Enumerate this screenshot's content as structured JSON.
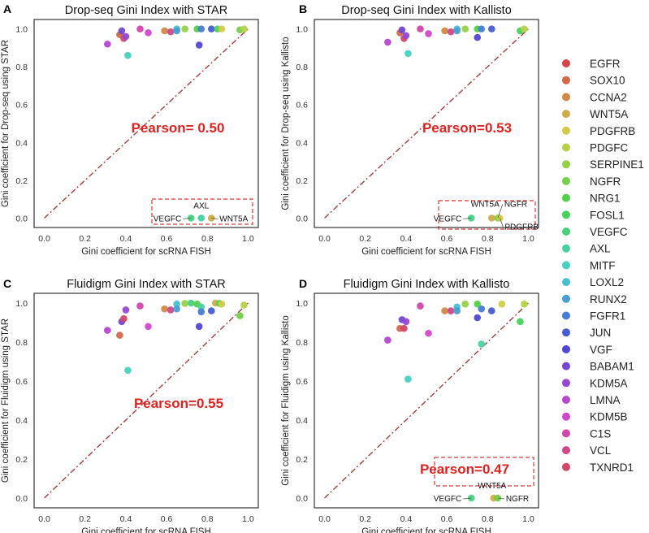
{
  "legend": {
    "items": [
      {
        "label": "EGFR",
        "color": "#d14747"
      },
      {
        "label": "SOX10",
        "color": "#d16947"
      },
      {
        "label": "CCNA2",
        "color": "#d18947"
      },
      {
        "label": "WNT5A",
        "color": "#d1ab47"
      },
      {
        "label": "PDGFRB",
        "color": "#d1cc47"
      },
      {
        "label": "PDGFC",
        "color": "#b6d147"
      },
      {
        "label": "SERPINE1",
        "color": "#94d147"
      },
      {
        "label": "NGFR",
        "color": "#73d147"
      },
      {
        "label": "NRG1",
        "color": "#52d147"
      },
      {
        "label": "FOSL1",
        "color": "#47d15d"
      },
      {
        "label": "VEGFC",
        "color": "#47d17e"
      },
      {
        "label": "AXL",
        "color": "#47d1a0"
      },
      {
        "label": "MITF",
        "color": "#47d1c1"
      },
      {
        "label": "LOXL2",
        "color": "#47c1d1"
      },
      {
        "label": "RUNX2",
        "color": "#47a0d1"
      },
      {
        "label": "FGFR1",
        "color": "#477ed1"
      },
      {
        "label": "JUN",
        "color": "#475dd1"
      },
      {
        "label": "VGF",
        "color": "#5247d1"
      },
      {
        "label": "BABAM1",
        "color": "#7347d1"
      },
      {
        "label": "KDM5A",
        "color": "#9447d1"
      },
      {
        "label": "LMNA",
        "color": "#b647d1"
      },
      {
        "label": "KDM5B",
        "color": "#d147cc"
      },
      {
        "label": "C1S",
        "color": "#d147ab"
      },
      {
        "label": "VCL",
        "color": "#d14789"
      },
      {
        "label": "TXNRD1",
        "color": "#d14769"
      }
    ]
  },
  "colors": {
    "diagonal": "#a0403f",
    "pearson": "#dd2222",
    "inset_box": "#d63a3a"
  },
  "chart_data": [
    {
      "type": "scatter",
      "letter": "A",
      "title": "Drop-seq Gini Index with STAR",
      "xlabel": "Gini coefficient for scRNA FISH",
      "ylabel": "Gini coefficient for Drop-seq using STAR",
      "xlim": [
        -0.05,
        1.05
      ],
      "ylim": [
        -0.05,
        1.05
      ],
      "xticks": [
        "0.0",
        "0.2",
        "0.4",
        "0.6",
        "0.8",
        "1.0"
      ],
      "yticks": [
        "0.0",
        "0.2",
        "0.4",
        "0.6",
        "0.8",
        "1.0"
      ],
      "annotation": "Pearson= 0.50",
      "inset_labels": [
        "VEGFC",
        "AXL",
        "WNT5A"
      ],
      "points": [
        {
          "gene": "LMNA",
          "x": 0.31,
          "y": 0.92
        },
        {
          "gene": "SOX10",
          "x": 0.37,
          "y": 0.97
        },
        {
          "gene": "BABAM1",
          "x": 0.38,
          "y": 0.99
        },
        {
          "gene": "TXNRD1",
          "x": 0.39,
          "y": 0.95
        },
        {
          "gene": "KDM5A",
          "x": 0.4,
          "y": 0.96
        },
        {
          "gene": "MITF",
          "x": 0.41,
          "y": 0.86
        },
        {
          "gene": "C1S",
          "x": 0.47,
          "y": 1.0
        },
        {
          "gene": "KDM5B",
          "x": 0.51,
          "y": 0.98
        },
        {
          "gene": "CCNA2",
          "x": 0.59,
          "y": 0.99
        },
        {
          "gene": "VCL",
          "x": 0.62,
          "y": 0.985
        },
        {
          "gene": "LOXL2",
          "x": 0.65,
          "y": 1.0
        },
        {
          "gene": "RUNX2",
          "x": 0.65,
          "y": 0.99
        },
        {
          "gene": "SERPINE1",
          "x": 0.69,
          "y": 1.0
        },
        {
          "gene": "NRG1",
          "x": 0.75,
          "y": 1.0
        },
        {
          "gene": "VGF",
          "x": 0.76,
          "y": 0.915
        },
        {
          "gene": "FGFR1",
          "x": 0.77,
          "y": 1.0
        },
        {
          "gene": "JUN",
          "x": 0.82,
          "y": 1.0
        },
        {
          "gene": "FOSL1",
          "x": 0.85,
          "y": 1.0
        },
        {
          "gene": "PDGFRB",
          "x": 0.87,
          "y": 1.0
        },
        {
          "gene": "NGFR",
          "x": 0.96,
          "y": 0.995
        },
        {
          "gene": "PDGFC",
          "x": 0.98,
          "y": 1.0
        },
        {
          "gene": "VEGFC",
          "x": 0.72,
          "y": 0.0
        },
        {
          "gene": "AXL",
          "x": 0.77,
          "y": 0.0
        },
        {
          "gene": "WNT5A",
          "x": 0.82,
          "y": 0.0
        }
      ]
    },
    {
      "type": "scatter",
      "letter": "B",
      "title": "Drop-seq Gini Index with Kallisto",
      "xlabel": "Gini coefficient for scRNA FISH",
      "ylabel": "Gini coefficient for Drop-seq using Kallisto",
      "xlim": [
        -0.05,
        1.05
      ],
      "ylim": [
        -0.05,
        1.05
      ],
      "xticks": [
        "0.0",
        "0.2",
        "0.4",
        "0.6",
        "0.8",
        "1.0"
      ],
      "yticks": [
        "0.0",
        "0.2",
        "0.4",
        "0.6",
        "0.8",
        "1.0"
      ],
      "annotation": "Pearson=0.53",
      "inset_labels": [
        "VEGFC",
        "WNT5A",
        "NGFR",
        "PDGFRB"
      ],
      "points": [
        {
          "gene": "LMNA",
          "x": 0.31,
          "y": 0.93
        },
        {
          "gene": "SOX10",
          "x": 0.37,
          "y": 0.98
        },
        {
          "gene": "BABAM1",
          "x": 0.38,
          "y": 0.995
        },
        {
          "gene": "TXNRD1",
          "x": 0.39,
          "y": 0.95
        },
        {
          "gene": "KDM5A",
          "x": 0.4,
          "y": 0.965
        },
        {
          "gene": "MITF",
          "x": 0.41,
          "y": 0.87
        },
        {
          "gene": "C1S",
          "x": 0.47,
          "y": 1.0
        },
        {
          "gene": "KDM5B",
          "x": 0.51,
          "y": 0.975
        },
        {
          "gene": "CCNA2",
          "x": 0.59,
          "y": 0.99
        },
        {
          "gene": "VCL",
          "x": 0.62,
          "y": 0.985
        },
        {
          "gene": "LOXL2",
          "x": 0.65,
          "y": 1.0
        },
        {
          "gene": "RUNX2",
          "x": 0.65,
          "y": 0.99
        },
        {
          "gene": "SERPINE1",
          "x": 0.69,
          "y": 1.0
        },
        {
          "gene": "NRG1",
          "x": 0.75,
          "y": 1.0
        },
        {
          "gene": "VGF",
          "x": 0.75,
          "y": 0.955
        },
        {
          "gene": "FGFR1",
          "x": 0.77,
          "y": 1.0
        },
        {
          "gene": "JUN",
          "x": 0.82,
          "y": 1.0
        },
        {
          "gene": "FOSL1",
          "x": 0.96,
          "y": 0.99
        },
        {
          "gene": "PDGFC",
          "x": 0.98,
          "y": 1.0
        },
        {
          "gene": "VEGFC",
          "x": 0.72,
          "y": 0.0
        },
        {
          "gene": "WNT5A",
          "x": 0.82,
          "y": 0.0
        },
        {
          "gene": "NGFR",
          "x": 0.85,
          "y": 0.0
        },
        {
          "gene": "PDGFRB",
          "x": 0.86,
          "y": 0.0
        }
      ]
    },
    {
      "type": "scatter",
      "letter": "C",
      "title": "Fluidigm Gini Index with STAR",
      "xlabel": "Gini coefficient for scRNA FISH",
      "ylabel": "Gini coefficient for Fluidigm using STAR",
      "xlim": [
        -0.05,
        1.05
      ],
      "ylim": [
        -0.05,
        1.05
      ],
      "xticks": [
        "0.0",
        "0.2",
        "0.4",
        "0.6",
        "0.8",
        "1.0"
      ],
      "yticks": [
        "0.0",
        "0.2",
        "0.4",
        "0.6",
        "0.8",
        "1.0"
      ],
      "annotation": "Pearson=0.55",
      "inset_labels": [],
      "points": [
        {
          "gene": "LMNA",
          "x": 0.31,
          "y": 0.86
        },
        {
          "gene": "SOX10",
          "x": 0.37,
          "y": 0.835
        },
        {
          "gene": "BABAM1",
          "x": 0.38,
          "y": 0.905
        },
        {
          "gene": "TXNRD1",
          "x": 0.39,
          "y": 0.92
        },
        {
          "gene": "KDM5A",
          "x": 0.4,
          "y": 0.965
        },
        {
          "gene": "MITF",
          "x": 0.41,
          "y": 0.655
        },
        {
          "gene": "C1S",
          "x": 0.47,
          "y": 0.985
        },
        {
          "gene": "KDM5B",
          "x": 0.51,
          "y": 0.88
        },
        {
          "gene": "CCNA2",
          "x": 0.59,
          "y": 0.97
        },
        {
          "gene": "VCL",
          "x": 0.62,
          "y": 0.965
        },
        {
          "gene": "LOXL2",
          "x": 0.65,
          "y": 0.995
        },
        {
          "gene": "RUNX2",
          "x": 0.65,
          "y": 0.97
        },
        {
          "gene": "SERPINE1",
          "x": 0.69,
          "y": 0.998
        },
        {
          "gene": "VEGFC",
          "x": 0.72,
          "y": 1.0
        },
        {
          "gene": "NRG1",
          "x": 0.75,
          "y": 0.995
        },
        {
          "gene": "VGF",
          "x": 0.76,
          "y": 0.88
        },
        {
          "gene": "AXL",
          "x": 0.77,
          "y": 0.98
        },
        {
          "gene": "FGFR1",
          "x": 0.77,
          "y": 0.955
        },
        {
          "gene": "JUN",
          "x": 0.82,
          "y": 0.96
        },
        {
          "gene": "WNT5A",
          "x": 0.84,
          "y": 1.0
        },
        {
          "gene": "FOSL1",
          "x": 0.86,
          "y": 0.998
        },
        {
          "gene": "PDGFRB",
          "x": 0.87,
          "y": 0.995
        },
        {
          "gene": "NGFR",
          "x": 0.96,
          "y": 0.935
        },
        {
          "gene": "PDGFC",
          "x": 0.98,
          "y": 0.99
        }
      ]
    },
    {
      "type": "scatter",
      "letter": "D",
      "title": "Fluidigm Gini Index with Kallisto",
      "xlabel": "Gini coefficient for scRNA FISH",
      "ylabel": "Gini coefficient for Fluidigm using Kallisto",
      "xlim": [
        -0.05,
        1.05
      ],
      "ylim": [
        -0.05,
        1.05
      ],
      "xticks": [
        "0.0",
        "0.2",
        "0.4",
        "0.6",
        "0.8",
        "1.0"
      ],
      "yticks": [
        "0.0",
        "0.2",
        "0.4",
        "0.6",
        "0.8",
        "1.0"
      ],
      "annotation": "Pearson=0.47",
      "inset_labels": [
        "VEGFC",
        "WNT5A",
        "NGFR"
      ],
      "points": [
        {
          "gene": "LMNA",
          "x": 0.31,
          "y": 0.81
        },
        {
          "gene": "SOX10",
          "x": 0.37,
          "y": 0.87
        },
        {
          "gene": "BABAM1",
          "x": 0.38,
          "y": 0.915
        },
        {
          "gene": "TXNRD1",
          "x": 0.39,
          "y": 0.87
        },
        {
          "gene": "KDM5A",
          "x": 0.4,
          "y": 0.905
        },
        {
          "gene": "MITF",
          "x": 0.41,
          "y": 0.61
        },
        {
          "gene": "C1S",
          "x": 0.47,
          "y": 0.985
        },
        {
          "gene": "KDM5B",
          "x": 0.51,
          "y": 0.845
        },
        {
          "gene": "CCNA2",
          "x": 0.59,
          "y": 0.96
        },
        {
          "gene": "VCL",
          "x": 0.62,
          "y": 0.96
        },
        {
          "gene": "LOXL2",
          "x": 0.65,
          "y": 0.98
        },
        {
          "gene": "RUNX2",
          "x": 0.65,
          "y": 0.96
        },
        {
          "gene": "SERPINE1",
          "x": 0.69,
          "y": 0.995
        },
        {
          "gene": "NRG1",
          "x": 0.75,
          "y": 0.995
        },
        {
          "gene": "VGF",
          "x": 0.75,
          "y": 0.925
        },
        {
          "gene": "FGFR1",
          "x": 0.77,
          "y": 0.97
        },
        {
          "gene": "AXL",
          "x": 0.77,
          "y": 0.79
        },
        {
          "gene": "JUN",
          "x": 0.82,
          "y": 0.96
        },
        {
          "gene": "PDGFRB",
          "x": 0.87,
          "y": 0.995
        },
        {
          "gene": "FOSL1",
          "x": 0.96,
          "y": 0.905
        },
        {
          "gene": "PDGFC",
          "x": 0.98,
          "y": 0.995
        },
        {
          "gene": "VEGFC",
          "x": 0.72,
          "y": 0.0
        },
        {
          "gene": "WNT5A",
          "x": 0.83,
          "y": 0.0
        },
        {
          "gene": "NGFR",
          "x": 0.85,
          "y": 0.0
        }
      ]
    }
  ]
}
